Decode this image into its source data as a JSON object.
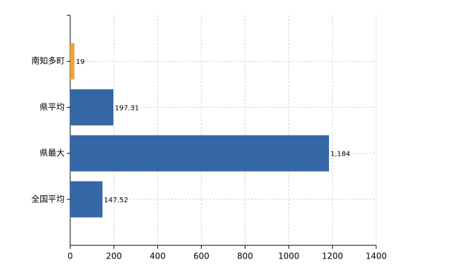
{
  "chart_data": {
    "type": "hbar",
    "categories": [
      "南知多町",
      "県平均",
      "県最大",
      "全国平均"
    ],
    "values": [
      19,
      197.31,
      1184,
      147.52
    ],
    "value_labels": [
      "19",
      "197.31",
      "1,184",
      "147.52"
    ],
    "colors": [
      "#f0a03c",
      "#3566a5",
      "#3566a5",
      "#3566a5"
    ],
    "xlim": [
      0,
      1400
    ],
    "xticks": [
      0,
      200,
      400,
      600,
      800,
      1000,
      1200,
      1400
    ],
    "grid": true
  }
}
